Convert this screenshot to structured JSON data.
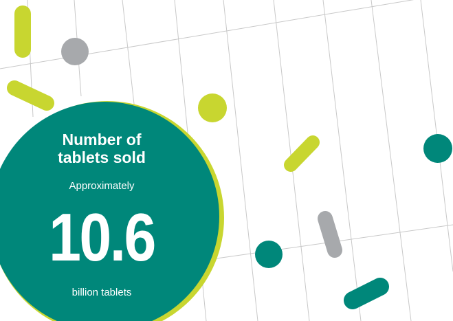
{
  "stat": {
    "heading_line1": "Number of",
    "heading_line2": "tablets sold",
    "qualifier": "Approximately",
    "figure": "10.6",
    "unit": "billion tablets"
  },
  "colors": {
    "teal": "#00877a",
    "lime": "#c8d630",
    "gray": "#a7a9ac",
    "grid_line": "#c8c8c8",
    "circle_rim": "#c8d630"
  }
}
